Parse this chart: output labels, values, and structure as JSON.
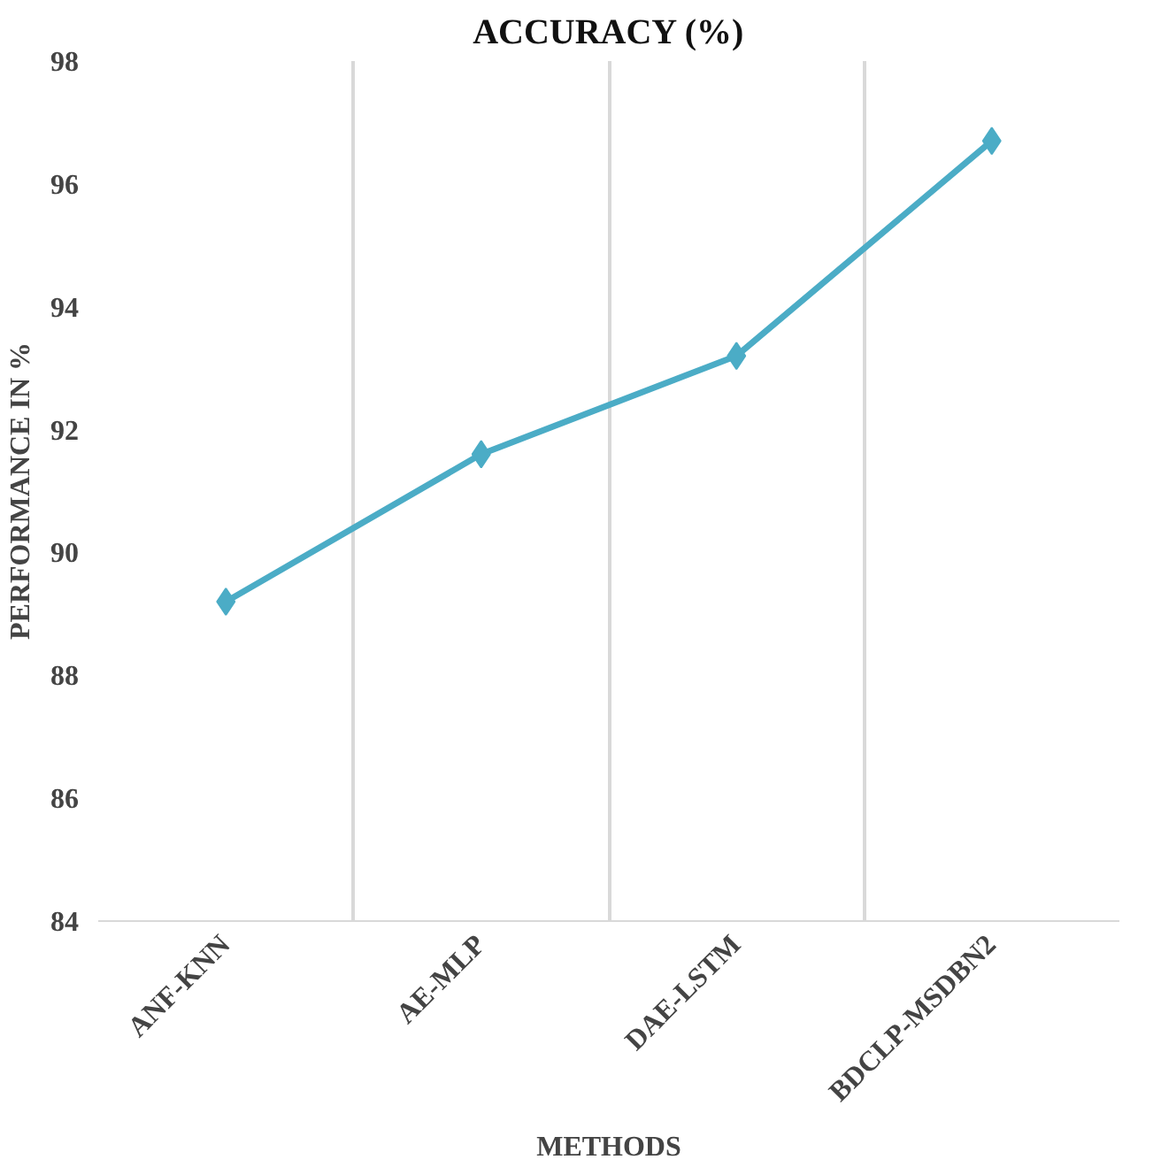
{
  "chart_data": {
    "type": "line",
    "title": "ACCURACY (%)",
    "xlabel": "METHODS",
    "ylabel": "PERFORMANCE IN %",
    "categories": [
      "ANF-KNN",
      "AE-MLP",
      "DAE-LSTM",
      "BDCLP-MSDBN2"
    ],
    "series": [
      {
        "color": "#4bacc6",
        "values": [
          89.2,
          91.6,
          93.2,
          96.7
        ]
      }
    ],
    "ylim": [
      84,
      98
    ],
    "yticks": [
      84,
      86,
      88,
      90,
      92,
      94,
      96,
      98
    ],
    "grid": "x",
    "marker": "diamond",
    "line_style": "solid"
  }
}
